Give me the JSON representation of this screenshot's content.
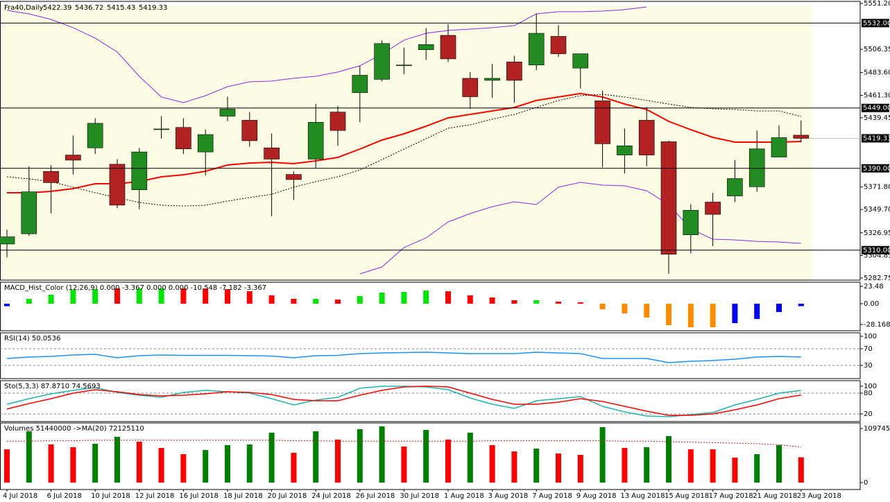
{
  "chart_data": [
    {
      "type": "candlestick",
      "title": "Fra40,Daily",
      "open": [
        5316,
        5326,
        5387,
        5403,
        5410,
        5394,
        5369,
        5428,
        5430,
        5406,
        5441,
        5437,
        5410,
        5384,
        5399,
        5445,
        5464,
        5477,
        5490.5,
        5506,
        5520,
        5478,
        5476,
        5494,
        5491,
        5519,
        5488,
        5456,
        5403,
        5437,
        5416,
        5325,
        5357,
        5363,
        5372,
        5401,
        5422.39
      ],
      "high": [
        5330,
        5392,
        5393,
        5422,
        5439,
        5399,
        5410,
        5441,
        5439,
        5428,
        5460,
        5445,
        5424,
        5387,
        5453,
        5451,
        5490,
        5515,
        5508,
        5527,
        5531,
        5484,
        5492,
        5500,
        5541,
        5530,
        5502,
        5466,
        5429,
        5450,
        5417,
        5355,
        5366,
        5398,
        5427,
        5432,
        5436.72
      ],
      "low": [
        5303,
        5324,
        5346,
        5384,
        5404,
        5351,
        5350,
        5419,
        5404,
        5383,
        5436,
        5411,
        5343,
        5359,
        5390,
        5412,
        5435,
        5475,
        5482,
        5496,
        5494,
        5448,
        5459,
        5454,
        5486,
        5499,
        5468,
        5391,
        5385,
        5392,
        5287,
        5307,
        5314,
        5357,
        5367,
        5401,
        5415.43
      ],
      "close": [
        5323,
        5367,
        5376,
        5398,
        5434,
        5354,
        5406,
        5428.5,
        5409,
        5423,
        5448,
        5417,
        5399,
        5379,
        5435,
        5427,
        5481,
        5512,
        5491,
        5511,
        5497,
        5460,
        5478,
        5476,
        5522,
        5502,
        5502,
        5414,
        5412,
        5403,
        5306,
        5349,
        5345,
        5380,
        5409,
        5420,
        5419.33
      ],
      "up_color": "#228b22",
      "down_color": "#b22222",
      "lines": [
        {
          "color": "#ff0000",
          "style": "solid",
          "values": [
            5366.1,
            5366.1,
            5367.5,
            5370.2,
            5374.9,
            5374.9,
            5377.0,
            5381.7,
            5383.7,
            5387.1,
            5393.2,
            5395.2,
            5395.9,
            5394.6,
            5397.3,
            5400.7,
            5408.8,
            5417.6,
            5423.7,
            5431.2,
            5439.3,
            5442.7,
            5446.1,
            5449.5,
            5456.3,
            5459.7,
            5463.1,
            5459.7,
            5452.9,
            5447.5,
            5435.9,
            5427.8,
            5420.3,
            5415.6,
            5415.6,
            5415.6,
            5416.3
          ]
        },
        {
          "color": "#000000",
          "style": "dotted",
          "values": [
            5381.7,
            5379.7,
            5377.0,
            5371.5,
            5366.1,
            5361.4,
            5356.6,
            5353.9,
            5353.2,
            5353.9,
            5358.0,
            5361.4,
            5364.7,
            5371.5,
            5377.0,
            5381.7,
            5388.5,
            5398.6,
            5408.8,
            5419.0,
            5429.2,
            5432.5,
            5438.0,
            5442.7,
            5449.5,
            5456.3,
            5461.0,
            5462.4,
            5459.7,
            5456.3,
            5452.9,
            5449.5,
            5448.1,
            5447.5,
            5446.1,
            5446.1,
            5440.7
          ]
        },
        {
          "color": "#8a2be2",
          "style": "solid",
          "values": [
            5544.4,
            5541.0,
            5535.6,
            5527.5,
            5517.3,
            5503.7,
            5480.0,
            5459.7,
            5454.2,
            5461.0,
            5469.8,
            5474.6,
            5475.3,
            5478.0,
            5480.0,
            5484.1,
            5490.2,
            5501.7,
            5515.3,
            5522.0,
            5524.8,
            5526.1,
            5527.5,
            5529.5,
            5541.0,
            5543.1,
            5543.1,
            5543.7,
            5545.1,
            5547.8,
            null,
            null,
            null,
            null,
            null,
            null,
            null
          ]
        },
        {
          "color": "#8a2be2",
          "style": "solid",
          "values": [
            null,
            null,
            null,
            null,
            null,
            null,
            null,
            null,
            null,
            null,
            null,
            null,
            null,
            null,
            null,
            null,
            5286.8,
            5293.6,
            5312.5,
            5322.0,
            5337.6,
            5345.8,
            5352.5,
            5357.3,
            5354.6,
            5371.5,
            5376.3,
            5373.6,
            5372.9,
            5368.1,
            5354.6,
            5330.8,
            5320.7,
            5320.0,
            5318.6,
            5318.0,
            5316.6
          ]
        }
      ],
      "levels": [
        {
          "value": 5532,
          "label": "5532.00"
        },
        {
          "value": 5449,
          "label": "5449.00"
        },
        {
          "value": 5390,
          "label": "5390.00"
        },
        {
          "value": 5310,
          "label": "5310.00"
        }
      ],
      "bid": 5419.33,
      "ylim": [
        5280.7,
        5553.2
      ],
      "yticks": [
        {
          "value": 5551.2,
          "label": "5551.20"
        },
        5506.35,
        {
          "value": 5483.6,
          "label": "5483.60"
        },
        {
          "value": 5461.3,
          "label": "5461.30"
        },
        5439.45,
        {
          "value": 5371.8,
          "label": "5371.80"
        },
        {
          "value": 5349.7,
          "label": "5349.70"
        },
        5326.95,
        5304.85,
        5282.75
      ]
    },
    {
      "type": "bar",
      "title": "MACD_Hist_Color (12,26,9) 0.000 -3.367 0.000 0.000 -10.548 -7.182 -3.367",
      "values": [
        -3.4,
        6.6,
        12.2,
        18.8,
        19.7,
        20.7,
        20.7,
        20.7,
        20.7,
        20.7,
        19.7,
        16.9,
        11.3,
        6.6,
        6.6,
        5.6,
        10.3,
        15.0,
        16.0,
        17.8,
        16.9,
        11.3,
        8.5,
        4.7,
        4.7,
        2.8,
        1.9,
        -7.5,
        -13.1,
        -18.8,
        -29.1,
        -31.9,
        -31.9,
        -26.3,
        -20.7,
        -11.3,
        -3.367
      ],
      "colors": [
        "#0000ff",
        "#00e600",
        "#00e600",
        "#00e600",
        "#00e600",
        "#ff0000",
        "#00e600",
        "#00e600",
        "#ff0000",
        "#ff0000",
        "#ff0000",
        "#ff0000",
        "#ff0000",
        "#ff0000",
        "#00e600",
        "#ff0000",
        "#00e600",
        "#00e600",
        "#00e600",
        "#00e600",
        "#ff0000",
        "#ff0000",
        "#ff0000",
        "#ff0000",
        "#00e600",
        "#ff0000",
        "#ff0000",
        "#ff8c00",
        "#ff8c00",
        "#ff8c00",
        "#ff8c00",
        "#ff8c00",
        "#ff8c00",
        "#0000ff",
        "#0000ff",
        "#0000ff",
        "#0000ff"
      ],
      "ylim": [
        -36.6,
        29.1
      ],
      "yticks": [
        23.48,
        {
          "value": 0,
          "label": "0.00"
        },
        -28.168
      ]
    },
    {
      "type": "line",
      "title": "RSI(14) 50.0536",
      "series": [
        {
          "color": "#1e90ff",
          "values": [
            46.7,
            50.0,
            51.7,
            55.0,
            56.7,
            48.3,
            53.3,
            55.0,
            54.2,
            54.2,
            54.2,
            53.3,
            52.5,
            48.3,
            53.3,
            54.2,
            58.3,
            60.0,
            60.8,
            61.7,
            60.0,
            58.3,
            58.3,
            58.3,
            61.7,
            60.0,
            58.3,
            46.7,
            46.7,
            46.7,
            36.7,
            40.0,
            41.7,
            45.0,
            50.0,
            51.7,
            50.0536
          ]
        }
      ],
      "ylim": [
        -1.67,
        108.3
      ],
      "yticks": [
        100,
        70,
        30
      ],
      "levels": [
        70,
        30
      ]
    },
    {
      "type": "line",
      "title": "Sto(5,3,3) 87.8710 74.5693",
      "series": [
        {
          "color": "#20b2aa",
          "values": [
            48,
            64,
            78,
            88,
            96,
            82,
            74,
            68,
            82,
            88,
            84,
            80,
            64,
            46,
            60,
            68,
            94,
            100,
            100,
            98,
            90,
            66,
            48,
            36,
            58,
            64,
            70,
            42,
            26,
            14,
            12,
            18,
            24,
            46,
            62,
            80,
            87.871
          ]
        },
        {
          "color": "#ff0000",
          "values": [
            34,
            50,
            64,
            80,
            90,
            84,
            76,
            72,
            74,
            78,
            84,
            82,
            76,
            62,
            58,
            58,
            74,
            88,
            98,
            100,
            98,
            80,
            62,
            48,
            48,
            54,
            64,
            56,
            42,
            28,
            16,
            16,
            20,
            32,
            46,
            64,
            74.5693
          ]
        }
      ],
      "ylim": [
        -2,
        116
      ],
      "yticks": [
        100,
        80,
        20
      ],
      "levels": [
        80,
        20
      ]
    },
    {
      "type": "bar",
      "title": "Volumes 51440000  ->MA(20) 72125110",
      "values": [
        67500000,
        104100000,
        77400000,
        71800000,
        78800000,
        92900000,
        83000000,
        70300000,
        57700000,
        66100000,
        76000000,
        77400000,
        101300000,
        60500000,
        104100000,
        87200000,
        108300000,
        114000000,
        73200000,
        106900000,
        87200000,
        101300000,
        76000000,
        63300000,
        68900000,
        59100000,
        56300000,
        112600000,
        70300000,
        71800000,
        94300000,
        67500000,
        67500000,
        50700000,
        57700000,
        76000000,
        51440000
      ],
      "colors": [
        "#ff0000",
        "#008000",
        "#ff0000",
        "#ff0000",
        "#008000",
        "#008000",
        "#ff0000",
        "#ff0000",
        "#ff0000",
        "#008000",
        "#008000",
        "#008000",
        "#008000",
        "#ff0000",
        "#008000",
        "#ff0000",
        "#008000",
        "#008000",
        "#ff0000",
        "#008000",
        "#ff0000",
        "#008000",
        "#ff0000",
        "#ff0000",
        "#008000",
        "#ff0000",
        "#ff0000",
        "#008000",
        "#ff0000",
        "#008000",
        "#008000",
        "#ff0000",
        "#ff0000",
        "#ff0000",
        "#008000",
        "#008000",
        "#ff0000"
      ],
      "lines": [
        {
          "color": "#b22222",
          "style": "dotted",
          "values": [
            84000000,
            84000000,
            85000000,
            85000000,
            86000000,
            86000000,
            86000000,
            86000000,
            86000000,
            86000000,
            86000000,
            86000000,
            86000000,
            85000000,
            85000000,
            84000000,
            84000000,
            84000000,
            84000000,
            84000000,
            84000000,
            84000000,
            85000000,
            85000000,
            85000000,
            85000000,
            85000000,
            85000000,
            84000000,
            84000000,
            83000000,
            82000000,
            81000000,
            80000000,
            79000000,
            77000000,
            72125110
          ]
        }
      ],
      "ylim": [
        -14070000,
        121000000
      ],
      "yticks": [
        109745050,
        0
      ],
      "categories": [
        "4 Jul 2018",
        null,
        "6 Jul 2018",
        null,
        "10 Jul 2018",
        null,
        "12 Jul 2018",
        null,
        "16 Jul 2018",
        null,
        "18 Jul 2018",
        null,
        "20 Jul 2018",
        null,
        "24 Jul 2018",
        null,
        "26 Jul 2018",
        null,
        "30 Jul 2018",
        null,
        "1 Aug 2018",
        null,
        "3 Aug 2018",
        null,
        "7 Aug 2018",
        null,
        "9 Aug 2018",
        null,
        "13 Aug 2018",
        null,
        "15 Aug 2018",
        null,
        "17 Aug 2018",
        null,
        "21 Aug 2018",
        null,
        "23 Aug 2018"
      ]
    }
  ]
}
